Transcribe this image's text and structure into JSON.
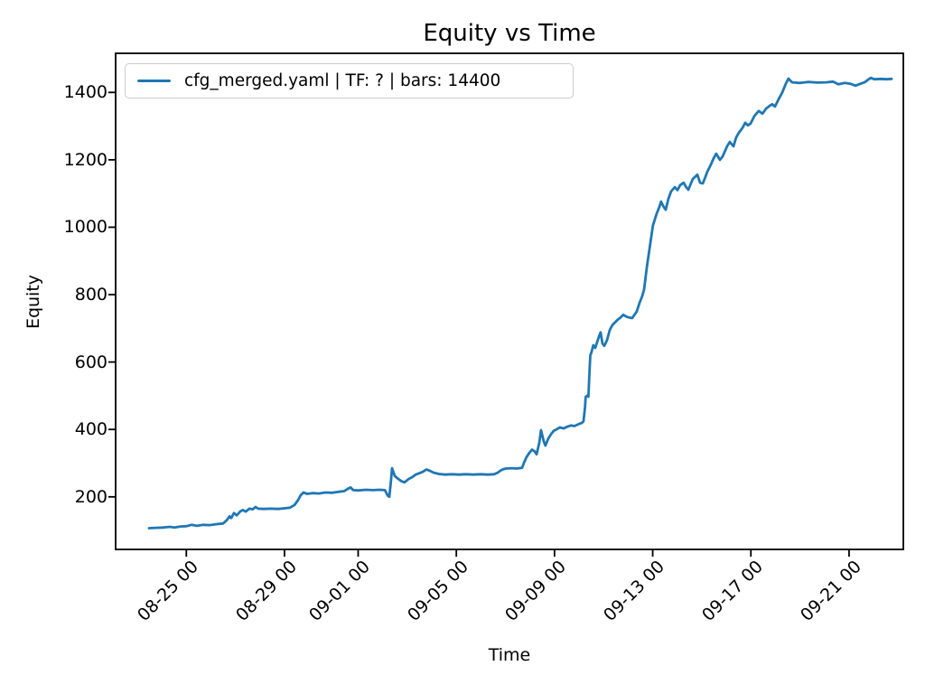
{
  "colors": {
    "line": "#1f77b4",
    "spine": "#000000",
    "legend_border": "#cccccc",
    "background": "#ffffff"
  },
  "chart_data": {
    "type": "line",
    "title": "Equity vs Time",
    "xlabel": "Time",
    "ylabel": "Equity",
    "grid": false,
    "x_unit": "days since 08-25 00:00",
    "xlim": [
      -2.88,
      29.21
    ],
    "ylim": [
      44,
      1516
    ],
    "xticks": {
      "values": [
        0,
        4,
        7,
        11,
        15,
        19,
        23,
        27
      ],
      "labels": [
        "08-25 00",
        "08-29 00",
        "09-01 00",
        "09-05 00",
        "09-09 00",
        "09-13 00",
        "09-17 00",
        "09-21 00"
      ],
      "rotation": 45
    },
    "yticks": {
      "values": [
        200,
        400,
        600,
        800,
        1000,
        1200,
        1400
      ],
      "labels": [
        "200",
        "400",
        "600",
        "800",
        "1000",
        "1200",
        "1400"
      ]
    },
    "legend": {
      "label": "cfg_merged.yaml | TF: ? | bars: 14400",
      "position": "upper left"
    },
    "series": [
      {
        "name": "cfg_merged.yaml | TF: ? | bars: 14400",
        "color": "#1f77b4",
        "points": [
          [
            -1.52,
            107
          ],
          [
            -1.26,
            108
          ],
          [
            -0.97,
            109
          ],
          [
            -0.67,
            111
          ],
          [
            -0.49,
            109
          ],
          [
            -0.23,
            112
          ],
          [
            0.0,
            113
          ],
          [
            0.21,
            117
          ],
          [
            0.43,
            114
          ],
          [
            0.69,
            117
          ],
          [
            0.95,
            116
          ],
          [
            1.24,
            119
          ],
          [
            1.5,
            121
          ],
          [
            1.65,
            131
          ],
          [
            1.76,
            142
          ],
          [
            1.83,
            137
          ],
          [
            1.94,
            152
          ],
          [
            2.05,
            145
          ],
          [
            2.2,
            157
          ],
          [
            2.31,
            161
          ],
          [
            2.42,
            156
          ],
          [
            2.57,
            165
          ],
          [
            2.71,
            163
          ],
          [
            2.82,
            170
          ],
          [
            2.93,
            165
          ],
          [
            3.15,
            164
          ],
          [
            3.45,
            165
          ],
          [
            3.74,
            164
          ],
          [
            4.0,
            166
          ],
          [
            4.22,
            168
          ],
          [
            4.41,
            176
          ],
          [
            4.55,
            190
          ],
          [
            4.66,
            205
          ],
          [
            4.77,
            213
          ],
          [
            4.92,
            209
          ],
          [
            5.14,
            211
          ],
          [
            5.4,
            210
          ],
          [
            5.66,
            213
          ],
          [
            5.95,
            212
          ],
          [
            6.21,
            215
          ],
          [
            6.43,
            217
          ],
          [
            6.58,
            224
          ],
          [
            6.69,
            228
          ],
          [
            6.8,
            220
          ],
          [
            7.02,
            219
          ],
          [
            7.31,
            221
          ],
          [
            7.61,
            220
          ],
          [
            7.87,
            221
          ],
          [
            8.09,
            220
          ],
          [
            8.2,
            204
          ],
          [
            8.27,
            200
          ],
          [
            8.34,
            250
          ],
          [
            8.38,
            285
          ],
          [
            8.49,
            262
          ],
          [
            8.6,
            255
          ],
          [
            8.75,
            247
          ],
          [
            8.89,
            243
          ],
          [
            9.04,
            252
          ],
          [
            9.19,
            258
          ],
          [
            9.34,
            266
          ],
          [
            9.49,
            270
          ],
          [
            9.63,
            274
          ],
          [
            9.78,
            281
          ],
          [
            9.93,
            277
          ],
          [
            10.07,
            272
          ],
          [
            10.29,
            268
          ],
          [
            10.55,
            266
          ],
          [
            10.81,
            267
          ],
          [
            11.1,
            266
          ],
          [
            11.4,
            267
          ],
          [
            11.69,
            266
          ],
          [
            11.99,
            267
          ],
          [
            12.28,
            266
          ],
          [
            12.54,
            267
          ],
          [
            12.69,
            272
          ],
          [
            12.8,
            278
          ],
          [
            12.91,
            282
          ],
          [
            13.02,
            284
          ],
          [
            13.24,
            285
          ],
          [
            13.46,
            284
          ],
          [
            13.68,
            286
          ],
          [
            13.75,
            300
          ],
          [
            13.86,
            318
          ],
          [
            13.97,
            330
          ],
          [
            14.08,
            340
          ],
          [
            14.19,
            335
          ],
          [
            14.27,
            326
          ],
          [
            14.38,
            360
          ],
          [
            14.45,
            398
          ],
          [
            14.56,
            365
          ],
          [
            14.63,
            352
          ],
          [
            14.74,
            372
          ],
          [
            14.85,
            385
          ],
          [
            14.97,
            396
          ],
          [
            15.08,
            400
          ],
          [
            15.22,
            406
          ],
          [
            15.37,
            403
          ],
          [
            15.52,
            408
          ],
          [
            15.67,
            412
          ],
          [
            15.81,
            410
          ],
          [
            15.96,
            415
          ],
          [
            16.11,
            419
          ],
          [
            16.18,
            424
          ],
          [
            16.24,
            465
          ],
          [
            16.27,
            497
          ],
          [
            16.33,
            500
          ],
          [
            16.38,
            497
          ],
          [
            16.42,
            560
          ],
          [
            16.46,
            620
          ],
          [
            16.51,
            630
          ],
          [
            16.58,
            650
          ],
          [
            16.66,
            642
          ],
          [
            16.73,
            658
          ],
          [
            16.81,
            675
          ],
          [
            16.88,
            688
          ],
          [
            16.95,
            655
          ],
          [
            17.03,
            648
          ],
          [
            17.14,
            665
          ],
          [
            17.25,
            695
          ],
          [
            17.36,
            710
          ],
          [
            17.47,
            718
          ],
          [
            17.58,
            726
          ],
          [
            17.69,
            732
          ],
          [
            17.8,
            740
          ],
          [
            17.95,
            734
          ],
          [
            18.1,
            731
          ],
          [
            18.17,
            731
          ],
          [
            18.35,
            750
          ],
          [
            18.46,
            775
          ],
          [
            18.57,
            795
          ],
          [
            18.65,
            815
          ],
          [
            18.76,
            880
          ],
          [
            18.9,
            950
          ],
          [
            19.01,
            1005
          ],
          [
            19.16,
            1040
          ],
          [
            19.27,
            1060
          ],
          [
            19.34,
            1076
          ],
          [
            19.45,
            1060
          ],
          [
            19.53,
            1052
          ],
          [
            19.64,
            1084
          ],
          [
            19.75,
            1106
          ],
          [
            19.9,
            1119
          ],
          [
            20.01,
            1110
          ],
          [
            20.12,
            1125
          ],
          [
            20.26,
            1132
          ],
          [
            20.37,
            1118
          ],
          [
            20.45,
            1111
          ],
          [
            20.56,
            1130
          ],
          [
            20.63,
            1143
          ],
          [
            20.82,
            1156
          ],
          [
            20.93,
            1132
          ],
          [
            21.04,
            1130
          ],
          [
            21.15,
            1150
          ],
          [
            21.22,
            1164
          ],
          [
            21.37,
            1186
          ],
          [
            21.48,
            1204
          ],
          [
            21.59,
            1218
          ],
          [
            21.74,
            1200
          ],
          [
            21.85,
            1210
          ],
          [
            22.03,
            1240
          ],
          [
            22.14,
            1253
          ],
          [
            22.29,
            1240
          ],
          [
            22.4,
            1266
          ],
          [
            22.51,
            1280
          ],
          [
            22.66,
            1295
          ],
          [
            22.77,
            1310
          ],
          [
            22.88,
            1302
          ],
          [
            22.99,
            1308
          ],
          [
            23.14,
            1330
          ],
          [
            23.32,
            1345
          ],
          [
            23.47,
            1337
          ],
          [
            23.62,
            1352
          ],
          [
            23.76,
            1360
          ],
          [
            23.87,
            1365
          ],
          [
            23.98,
            1358
          ],
          [
            24.13,
            1380
          ],
          [
            24.28,
            1400
          ],
          [
            24.42,
            1425
          ],
          [
            24.53,
            1441
          ],
          [
            24.68,
            1430
          ],
          [
            24.98,
            1428
          ],
          [
            25.34,
            1431
          ],
          [
            25.71,
            1429
          ],
          [
            26.08,
            1430
          ],
          [
            26.34,
            1432
          ],
          [
            26.56,
            1424
          ],
          [
            26.82,
            1428
          ],
          [
            27.04,
            1426
          ],
          [
            27.26,
            1420
          ],
          [
            27.44,
            1425
          ],
          [
            27.63,
            1430
          ],
          [
            27.78,
            1438
          ],
          [
            27.89,
            1443
          ],
          [
            28.03,
            1439
          ],
          [
            28.29,
            1440
          ],
          [
            28.51,
            1439
          ],
          [
            28.73,
            1440
          ]
        ]
      }
    ]
  }
}
